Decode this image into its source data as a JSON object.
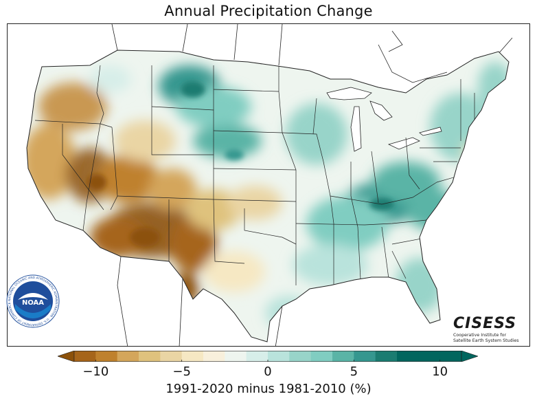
{
  "title": "Annual Precipitation Change",
  "colorbar": {
    "label": "1991-2020 minus 1981-2010 (%)",
    "ticks": [
      {
        "value": -10,
        "label": "−10"
      },
      {
        "value": -5,
        "label": "−5"
      },
      {
        "value": 0,
        "label": "0"
      },
      {
        "value": 5,
        "label": "5"
      },
      {
        "value": 10,
        "label": "10"
      }
    ],
    "min": -12.5,
    "max": 12.5,
    "step": 1.25,
    "colors": [
      "#8c510a",
      "#a6651a",
      "#bf812d",
      "#d4a65b",
      "#dfc27d",
      "#ead5a4",
      "#f6e8c3",
      "#f8f0dc",
      "#eef5ef",
      "#d7eee9",
      "#b9e3dc",
      "#98d4c9",
      "#80cdc1",
      "#5ab4a6",
      "#35978f",
      "#1b7c71",
      "#01665e"
    ]
  },
  "logos": {
    "noaa": {
      "center_text": "NOAA",
      "ring_text": "NATIONAL OCEANIC AND ATMOSPHERIC ADMINISTRATION · U.S. DEPARTMENT OF COMMERCE"
    },
    "cisess": {
      "wordmark": "CISESS",
      "subtitle_line1": "Cooperative Institute for",
      "subtitle_line2": "Satellite Earth System Studies"
    }
  }
}
